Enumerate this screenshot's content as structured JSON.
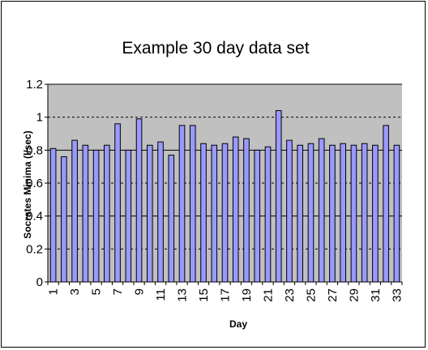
{
  "chart_data": {
    "type": "bar",
    "title": "Example 30 day data set",
    "xlabel": "Day",
    "ylabel": "Socrates Minima (l/sec)",
    "ylim": [
      0,
      1.2
    ],
    "y_ticks": [
      "0",
      "0.2",
      "0.4",
      "0.6",
      "0.8",
      "1",
      "1.2"
    ],
    "x_ticks": [
      "1",
      "3",
      "5",
      "7",
      "9",
      "11",
      "13",
      "15",
      "17",
      "19",
      "21",
      "23",
      "25",
      "27",
      "29",
      "31",
      "33"
    ],
    "grid": true,
    "legend": "none",
    "categories": [
      1,
      2,
      3,
      4,
      5,
      6,
      7,
      8,
      9,
      10,
      11,
      12,
      13,
      14,
      15,
      16,
      17,
      18,
      19,
      20,
      21,
      22,
      23,
      24,
      25,
      26,
      27,
      28,
      29,
      30,
      31,
      32,
      33
    ],
    "values": [
      0.81,
      0.76,
      0.86,
      0.83,
      0.8,
      0.83,
      0.96,
      0.8,
      0.99,
      0.83,
      0.85,
      0.77,
      0.95,
      0.95,
      0.84,
      0.83,
      0.84,
      0.88,
      0.87,
      0.8,
      0.82,
      1.04,
      0.86,
      0.83,
      0.84,
      0.87,
      0.83,
      0.84,
      0.83,
      0.84,
      0.83,
      0.95,
      0.83
    ],
    "colors": {
      "bar_fill": "#9999ff",
      "bar_stroke": "#000000",
      "plot_background": "#c0c0c0",
      "gridline": "#000000"
    }
  }
}
